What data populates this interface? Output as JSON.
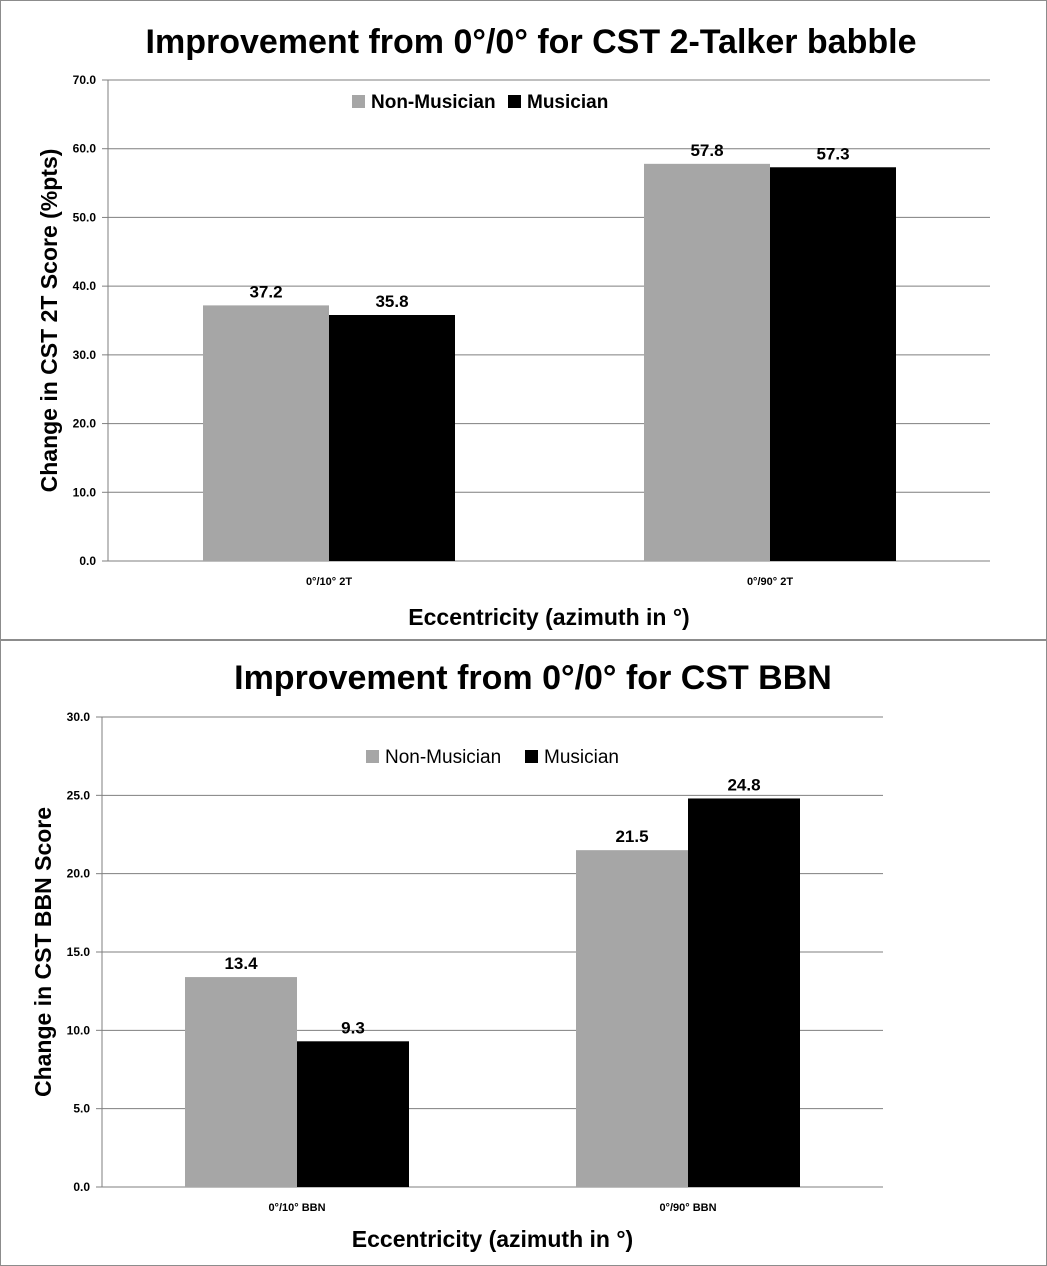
{
  "chart_data": [
    {
      "type": "bar",
      "title": "Improvement from 0°/0° for CST 2-Talker babble",
      "xlabel": "Eccentricity (azimuth in °)",
      "ylabel": "Change in CST 2T Score (%pts)",
      "categories": [
        "0°/10° 2T",
        "0°/90° 2T"
      ],
      "series": [
        {
          "name": "Non-Musician",
          "color": "#a6a6a6",
          "values": [
            37.2,
            57.8
          ]
        },
        {
          "name": "Musician",
          "color": "#000000",
          "values": [
            35.8,
            57.3
          ]
        }
      ],
      "ylim": [
        0,
        70
      ],
      "yticks": [
        "0.0",
        "10.0",
        "20.0",
        "30.0",
        "40.0",
        "50.0",
        "60.0",
        "70.0"
      ],
      "data_labels": [
        [
          "37.2",
          "57.8"
        ],
        [
          "35.8",
          "57.3"
        ]
      ],
      "grid": true,
      "legend": "top-center"
    },
    {
      "type": "bar",
      "title": "Improvement from 0°/0° for CST BBN",
      "xlabel": "Eccentricity (azimuth in °)",
      "ylabel": "Change in CST BBN Score",
      "categories": [
        "0°/10° BBN",
        "0°/90° BBN"
      ],
      "series": [
        {
          "name": "Non-Musician",
          "color": "#a6a6a6",
          "values": [
            13.4,
            21.5
          ]
        },
        {
          "name": "Musician",
          "color": "#000000",
          "values": [
            9.3,
            24.8
          ]
        }
      ],
      "ylim": [
        0,
        30
      ],
      "yticks": [
        "0.0",
        "5.0",
        "10.0",
        "15.0",
        "20.0",
        "25.0",
        "30.0"
      ],
      "data_labels": [
        [
          "13.4",
          "21.5"
        ],
        [
          "9.3",
          "24.8"
        ]
      ],
      "grid": true,
      "legend": "top-center"
    }
  ]
}
